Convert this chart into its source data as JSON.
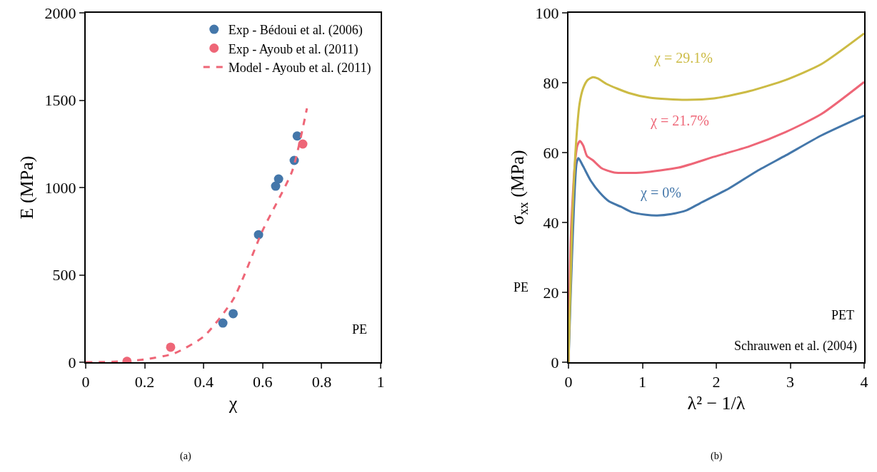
{
  "chart_data": [
    {
      "type": "scatter",
      "xlabel": "χ",
      "ylabel": "E (MPa)",
      "xlim": [
        0,
        1
      ],
      "xticks": [
        0,
        0.2,
        0.4,
        0.6,
        0.8,
        1
      ],
      "ylim": [
        0,
        2000
      ],
      "yticks": [
        0,
        500,
        1000,
        1500,
        2000
      ],
      "grid": false,
      "legend": "top right",
      "series": [
        {
          "name": "Exp - Bédoui et al. (2006)",
          "marker": "circle",
          "color": "#4477aa",
          "x": [
            0.465,
            0.5,
            0.586,
            0.644,
            0.654,
            0.707,
            0.717
          ],
          "values": [
            224,
            278,
            730,
            1008,
            1049,
            1155,
            1295
          ]
        },
        {
          "name": "Exp - Ayoub et al. (2011)",
          "marker": "circle",
          "color": "#ee6677",
          "x": [
            0.14,
            0.288,
            0.736
          ],
          "values": [
            5,
            86,
            1249
          ]
        },
        {
          "name": "Model - Ayoub et al. (2011)",
          "type": "line",
          "line_style": "dashed",
          "color": "#ee6677",
          "x": [
            0,
            0.1,
            0.2,
            0.3,
            0.4,
            0.5,
            0.6,
            0.7,
            0.75
          ],
          "values": [
            0,
            3,
            16,
            50,
            147,
            359,
            755,
            1094,
            1453
          ]
        }
      ],
      "annotations": [
        "PE",
        "(a)"
      ]
    },
    {
      "type": "line",
      "xlabel": "λ² − 1/λ",
      "ylabel": "σ$_{xx}$ (MPa)",
      "xlim": [
        0,
        4
      ],
      "xticks": [
        0,
        1,
        2,
        3,
        4
      ],
      "ylim": [
        0,
        100
      ],
      "yticks": [
        0,
        20,
        40,
        60,
        80,
        100
      ],
      "grid": false,
      "legend": false,
      "series": [
        {
          "name": "χ = 0%",
          "color": "#4477aa",
          "x": [
            0,
            0.11,
            0.135,
            0.2,
            0.3,
            0.42,
            0.55,
            0.71,
            0.85,
            1.05,
            1.2,
            1.39,
            1.6,
            1.78,
            2.16,
            2.55,
            2.94,
            3.42,
            4
          ],
          "values": [
            0,
            57,
            58.4,
            56,
            52,
            48.6,
            46,
            44.5,
            43,
            42.2,
            42,
            42.4,
            43.5,
            45.5,
            49.6,
            54.7,
            59.2,
            64.9,
            70.6
          ]
        },
        {
          "name": "χ = 21.7%",
          "color": "#ee6677",
          "x": [
            0,
            0.03,
            0.08,
            0.12,
            0.155,
            0.2,
            0.25,
            0.33,
            0.45,
            0.62,
            1.0,
            1.49,
            1.97,
            2.45,
            2.94,
            3.42,
            4
          ],
          "values": [
            0,
            35,
            55,
            62,
            63.3,
            62,
            59,
            57.8,
            55.5,
            54.3,
            54.3,
            55.7,
            58.8,
            61.8,
            65.9,
            71,
            80.2
          ]
        },
        {
          "name": "χ = 29.1%",
          "color": "#ccbb44",
          "x": [
            0,
            0.05,
            0.1,
            0.15,
            0.2,
            0.26,
            0.33,
            0.4,
            0.52,
            0.81,
            1.1,
            1.58,
            1.97,
            2.45,
            2.94,
            3.42,
            4
          ],
          "values": [
            0,
            40,
            62,
            74,
            78.5,
            80.8,
            81.6,
            81.2,
            79.6,
            77.1,
            75.7,
            75.1,
            75.5,
            77.6,
            80.8,
            85.3,
            94.1
          ]
        }
      ],
      "annotations": [
        "PET",
        "Schrauwen et al. (2004)",
        "PE",
        "(b)"
      ]
    }
  ]
}
